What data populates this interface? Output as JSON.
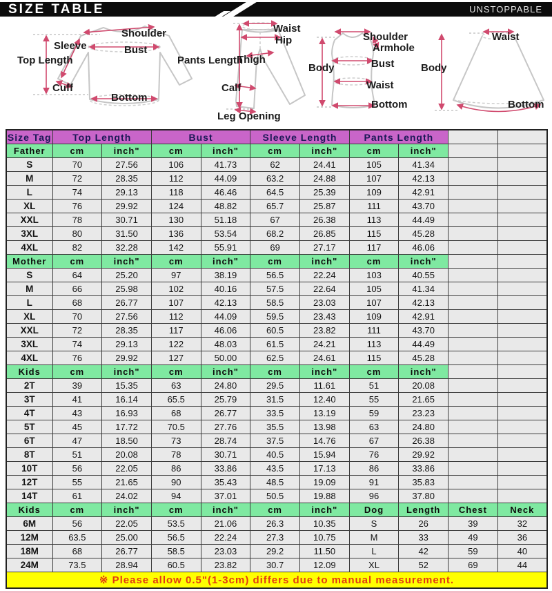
{
  "banner": {
    "title": "SIZE TABLE",
    "brand": "UNSTOPPABLE"
  },
  "colors": {
    "header-purple": "#c965c9",
    "header-green": "#7fe9a1",
    "row-gray": "#e9e9e9",
    "note-yellow": "#ffff00",
    "note-red": "#e23b12",
    "arrow-pink": "#d04a6e",
    "navy": "#1b1856"
  },
  "diagrams": {
    "shirt": {
      "labels": [
        "Shoulder",
        "Sleeve",
        "Bust",
        "Top Length",
        "Cuff",
        "Bottom"
      ]
    },
    "pants": {
      "labels": [
        "Waist",
        "Hip",
        "Pants Length",
        "Thigh",
        "Calf",
        "Leg Opening"
      ]
    },
    "vest": {
      "labels": [
        "Shoulder",
        "Armhole",
        "Bust",
        "Body",
        "Waist",
        "Bottom"
      ]
    },
    "skirt": {
      "labels": [
        "Waist",
        "Body",
        "Bottom"
      ]
    }
  },
  "table": {
    "header": [
      "Size Tag",
      "Top Length",
      "Bust",
      "Sleeve Length",
      "Pants Length"
    ],
    "sections": [
      {
        "label": "Father",
        "columns": [
          "cm",
          "inch\"",
          "cm",
          "inch\"",
          "cm",
          "inch\"",
          "cm",
          "inch\"",
          "",
          ""
        ],
        "rows": [
          [
            "S",
            "70",
            "27.56",
            "106",
            "41.73",
            "62",
            "24.41",
            "105",
            "41.34"
          ],
          [
            "M",
            "72",
            "28.35",
            "112",
            "44.09",
            "63.2",
            "24.88",
            "107",
            "42.13"
          ],
          [
            "L",
            "74",
            "29.13",
            "118",
            "46.46",
            "64.5",
            "25.39",
            "109",
            "42.91"
          ],
          [
            "XL",
            "76",
            "29.92",
            "124",
            "48.82",
            "65.7",
            "25.87",
            "111",
            "43.70"
          ],
          [
            "XXL",
            "78",
            "30.71",
            "130",
            "51.18",
            "67",
            "26.38",
            "113",
            "44.49"
          ],
          [
            "3XL",
            "80",
            "31.50",
            "136",
            "53.54",
            "68.2",
            "26.85",
            "115",
            "45.28"
          ],
          [
            "4XL",
            "82",
            "32.28",
            "142",
            "55.91",
            "69",
            "27.17",
            "117",
            "46.06"
          ]
        ]
      },
      {
        "label": "Mother",
        "columns": [
          "cm",
          "inch\"",
          "cm",
          "inch\"",
          "cm",
          "inch\"",
          "cm",
          "inch\"",
          "",
          ""
        ],
        "rows": [
          [
            "S",
            "64",
            "25.20",
            "97",
            "38.19",
            "56.5",
            "22.24",
            "103",
            "40.55"
          ],
          [
            "M",
            "66",
            "25.98",
            "102",
            "40.16",
            "57.5",
            "22.64",
            "105",
            "41.34"
          ],
          [
            "L",
            "68",
            "26.77",
            "107",
            "42.13",
            "58.5",
            "23.03",
            "107",
            "42.13"
          ],
          [
            "XL",
            "70",
            "27.56",
            "112",
            "44.09",
            "59.5",
            "23.43",
            "109",
            "42.91"
          ],
          [
            "XXL",
            "72",
            "28.35",
            "117",
            "46.06",
            "60.5",
            "23.82",
            "111",
            "43.70"
          ],
          [
            "3XL",
            "74",
            "29.13",
            "122",
            "48.03",
            "61.5",
            "24.21",
            "113",
            "44.49"
          ],
          [
            "4XL",
            "76",
            "29.92",
            "127",
            "50.00",
            "62.5",
            "24.61",
            "115",
            "45.28"
          ]
        ]
      },
      {
        "label": "Kids",
        "columns": [
          "cm",
          "inch\"",
          "cm",
          "inch\"",
          "cm",
          "inch\"",
          "cm",
          "inch\"",
          "",
          ""
        ],
        "rows": [
          [
            "2T",
            "39",
            "15.35",
            "63",
            "24.80",
            "29.5",
            "11.61",
            "51",
            "20.08"
          ],
          [
            "3T",
            "41",
            "16.14",
            "65.5",
            "25.79",
            "31.5",
            "12.40",
            "55",
            "21.65"
          ],
          [
            "4T",
            "43",
            "16.93",
            "68",
            "26.77",
            "33.5",
            "13.19",
            "59",
            "23.23"
          ],
          [
            "5T",
            "45",
            "17.72",
            "70.5",
            "27.76",
            "35.5",
            "13.98",
            "63",
            "24.80"
          ],
          [
            "6T",
            "47",
            "18.50",
            "73",
            "28.74",
            "37.5",
            "14.76",
            "67",
            "26.38"
          ],
          [
            "8T",
            "51",
            "20.08",
            "78",
            "30.71",
            "40.5",
            "15.94",
            "76",
            "29.92"
          ],
          [
            "10T",
            "56",
            "22.05",
            "86",
            "33.86",
            "43.5",
            "17.13",
            "86",
            "33.86"
          ],
          [
            "12T",
            "55",
            "21.65",
            "90",
            "35.43",
            "48.5",
            "19.09",
            "91",
            "35.83"
          ],
          [
            "14T",
            "61",
            "24.02",
            "94",
            "37.01",
            "50.5",
            "19.88",
            "96",
            "37.80"
          ]
        ]
      },
      {
        "label": "Kids",
        "columns": [
          "cm",
          "inch\"",
          "cm",
          "inch\"",
          "cm",
          "inch\"",
          "Dog",
          "Length",
          "Chest",
          "Neck"
        ],
        "rows": [
          [
            "6M",
            "56",
            "22.05",
            "53.5",
            "21.06",
            "26.3",
            "10.35",
            "S",
            "26",
            "39",
            "32"
          ],
          [
            "12M",
            "63.5",
            "25.00",
            "56.5",
            "22.24",
            "27.3",
            "10.75",
            "M",
            "33",
            "49",
            "36"
          ],
          [
            "18M",
            "68",
            "26.77",
            "58.5",
            "23.03",
            "29.2",
            "11.50",
            "L",
            "42",
            "59",
            "40"
          ],
          [
            "24M",
            "73.5",
            "28.94",
            "60.5",
            "23.82",
            "30.7",
            "12.09",
            "XL",
            "52",
            "69",
            "44"
          ]
        ]
      }
    ],
    "note": "※ Please allow 0.5\"(1-3cm) differs due to manual measurement."
  }
}
